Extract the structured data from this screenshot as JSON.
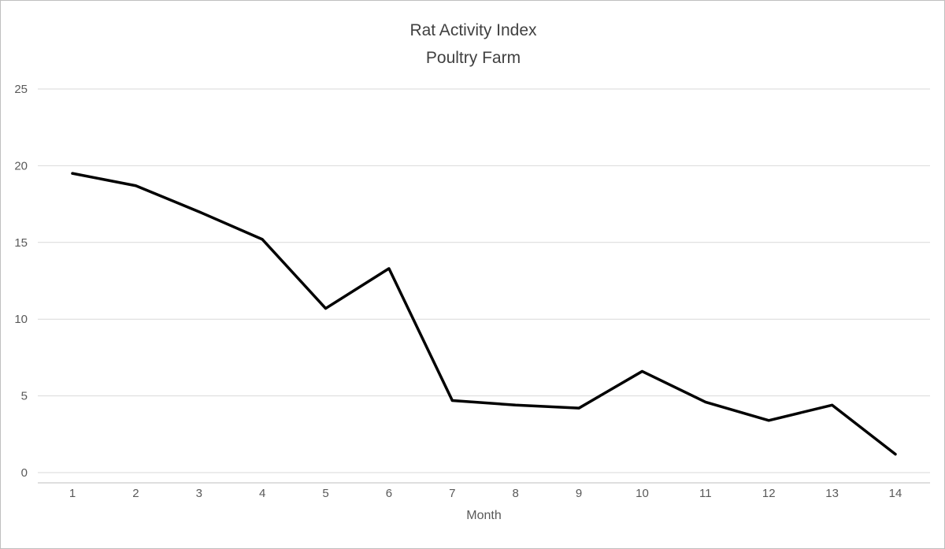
{
  "chart": {
    "title_line1": "Rat Activity Index",
    "title_line2": "Poultry Farm",
    "xlabel": "Month"
  },
  "chart_data": {
    "type": "line",
    "title": "Rat Activity Index Poultry Farm",
    "xlabel": "Month",
    "ylabel": "",
    "x": [
      1,
      2,
      3,
      4,
      5,
      6,
      7,
      8,
      9,
      10,
      11,
      12,
      13,
      14
    ],
    "values": [
      19.5,
      18.7,
      17.0,
      15.2,
      10.7,
      13.3,
      4.7,
      4.4,
      4.2,
      6.6,
      4.6,
      3.4,
      4.4,
      1.2
    ],
    "ylim": [
      0,
      25
    ],
    "y_ticks": [
      0,
      5,
      10,
      15,
      20,
      25
    ],
    "grid": true,
    "legend": "none",
    "line_color": "#000000",
    "grid_color": "#d9d9d9",
    "axis_line_color": "#bfbfbf",
    "tick_label_color": "#595959",
    "title_color": "#404040"
  }
}
